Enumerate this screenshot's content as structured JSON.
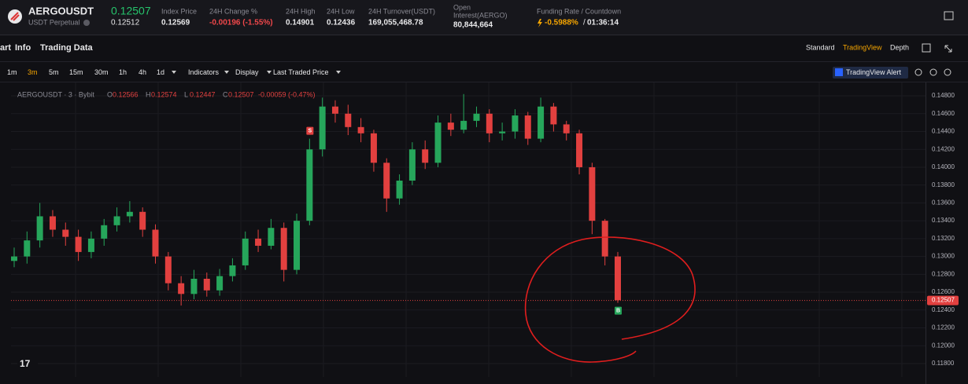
{
  "header": {
    "symbol": "AERGOUSDT",
    "contract": "USDT Perpetual",
    "last_price": "0.12507",
    "mark_price": "0.12512",
    "stats": [
      {
        "label": "Index Price",
        "value": "0.12569"
      },
      {
        "label": "24H Change %",
        "value": "-0.00196 (-1.55%)"
      },
      {
        "label": "24H High",
        "value": "0.14901"
      },
      {
        "label": "24H Low",
        "value": "0.12436"
      },
      {
        "label": "24H Turnover(USDT)",
        "value": "169,055,468.78"
      }
    ],
    "open_interest": {
      "label_lines": [
        "Open",
        "Interest(AERGO)"
      ],
      "value": "80,844,664"
    },
    "funding": {
      "label": "Funding Rate / Countdown",
      "rate": "-0.5988%",
      "separator": "/",
      "countdown": "01:36:14"
    }
  },
  "tabs": {
    "left": [
      "art",
      "Info",
      "Trading Data"
    ],
    "right": [
      "Standard",
      "TradingView",
      "Depth"
    ],
    "active_right_index": 1
  },
  "toolbar": {
    "intervals": [
      "1m",
      "3m",
      "5m",
      "15m",
      "30m",
      "1h",
      "4h",
      "1d"
    ],
    "active_interval_index": 1,
    "menus": [
      "Indicators",
      "Display",
      "Last Traded Price"
    ],
    "alert": "TradingView Alert"
  },
  "chart_data": {
    "type": "candlestick",
    "legend": {
      "title": "AERGOUSDT · 3 · Bybit",
      "items": [
        {
          "key": "O",
          "value": "0.12566"
        },
        {
          "key": "H",
          "value": "0.12574"
        },
        {
          "key": "L",
          "value": "0.12447"
        },
        {
          "key": "C",
          "value": "0.12507"
        }
      ],
      "change": "-0.00059 (-0.47%)"
    },
    "up_color": "#26a65b",
    "down_color": "#e2403f",
    "grid": true,
    "ylim": [
      0.1165,
      0.1495
    ],
    "yticks": [
      {
        "value": 0.148,
        "label": "0.14800"
      },
      {
        "value": 0.146,
        "label": "0.14600"
      },
      {
        "value": 0.144,
        "label": "0.14400"
      },
      {
        "value": 0.142,
        "label": "0.14200"
      },
      {
        "value": 0.14,
        "label": "0.14000"
      },
      {
        "value": 0.138,
        "label": "0.13800"
      },
      {
        "value": 0.136,
        "label": "0.13600"
      },
      {
        "value": 0.134,
        "label": "0.13400"
      },
      {
        "value": 0.132,
        "label": "0.13200"
      },
      {
        "value": 0.13,
        "label": "0.13000"
      },
      {
        "value": 0.128,
        "label": "0.12800"
      },
      {
        "value": 0.126,
        "label": "0.12600"
      },
      {
        "value": 0.124,
        "label": "0.12400"
      },
      {
        "value": 0.122,
        "label": "0.12200"
      },
      {
        "value": 0.12,
        "label": "0.12000"
      },
      {
        "value": 0.118,
        "label": "0.11800"
      }
    ],
    "last_price": 0.12507,
    "candles": [
      [
        0.1295,
        0.131,
        0.1288,
        0.13
      ],
      [
        0.13,
        0.1328,
        0.1292,
        0.1318
      ],
      [
        0.1318,
        0.136,
        0.131,
        0.1345
      ],
      [
        0.1345,
        0.1352,
        0.1322,
        0.133
      ],
      [
        0.133,
        0.1338,
        0.1312,
        0.1322
      ],
      [
        0.1322,
        0.133,
        0.1295,
        0.1305
      ],
      [
        0.1305,
        0.1328,
        0.1298,
        0.132
      ],
      [
        0.132,
        0.1342,
        0.1312,
        0.1335
      ],
      [
        0.1335,
        0.1355,
        0.1328,
        0.1345
      ],
      [
        0.1345,
        0.1362,
        0.1338,
        0.135
      ],
      [
        0.135,
        0.1355,
        0.1322,
        0.133
      ],
      [
        0.133,
        0.1336,
        0.1292,
        0.13
      ],
      [
        0.13,
        0.1305,
        0.1262,
        0.127
      ],
      [
        0.127,
        0.1278,
        0.1245,
        0.1258
      ],
      [
        0.1258,
        0.1285,
        0.1252,
        0.1275
      ],
      [
        0.1275,
        0.1282,
        0.1255,
        0.1262
      ],
      [
        0.1262,
        0.1286,
        0.1256,
        0.1278
      ],
      [
        0.1278,
        0.1298,
        0.1272,
        0.129
      ],
      [
        0.129,
        0.1328,
        0.1285,
        0.132
      ],
      [
        0.132,
        0.133,
        0.1305,
        0.1312
      ],
      [
        0.1312,
        0.1342,
        0.1308,
        0.1332
      ],
      [
        0.1332,
        0.1338,
        0.1272,
        0.1285
      ],
      [
        0.1285,
        0.1348,
        0.128,
        0.134
      ],
      [
        0.134,
        0.1432,
        0.1335,
        0.142
      ],
      [
        0.142,
        0.1478,
        0.1412,
        0.1468
      ],
      [
        0.1468,
        0.1475,
        0.145,
        0.146
      ],
      [
        0.146,
        0.147,
        0.1436,
        0.1445
      ],
      [
        0.1445,
        0.1455,
        0.1428,
        0.1438
      ],
      [
        0.1438,
        0.1442,
        0.1395,
        0.1405
      ],
      [
        0.1405,
        0.141,
        0.135,
        0.1365
      ],
      [
        0.1365,
        0.1392,
        0.1358,
        0.1385
      ],
      [
        0.1385,
        0.1428,
        0.138,
        0.142
      ],
      [
        0.142,
        0.143,
        0.1398,
        0.1405
      ],
      [
        0.1405,
        0.1458,
        0.14,
        0.145
      ],
      [
        0.145,
        0.146,
        0.1435,
        0.1442
      ],
      [
        0.1442,
        0.1482,
        0.1438,
        0.1452
      ],
      [
        0.1452,
        0.1468,
        0.1445,
        0.146
      ],
      [
        0.146,
        0.1465,
        0.1428,
        0.1438
      ],
      [
        0.1438,
        0.145,
        0.143,
        0.144
      ],
      [
        0.144,
        0.1465,
        0.1432,
        0.1458
      ],
      [
        0.1458,
        0.1462,
        0.1425,
        0.1432
      ],
      [
        0.1432,
        0.1478,
        0.1428,
        0.1468
      ],
      [
        0.1468,
        0.1472,
        0.144,
        0.1448
      ],
      [
        0.1448,
        0.1452,
        0.143,
        0.1438
      ],
      [
        0.1438,
        0.1442,
        0.1392,
        0.14
      ],
      [
        0.14,
        0.1405,
        0.1325,
        0.134
      ],
      [
        0.134,
        0.1342,
        0.129,
        0.13
      ],
      [
        0.13,
        0.1305,
        0.1248,
        0.1251
      ]
    ],
    "markers": [
      {
        "label": "S",
        "candle": 23,
        "side": "above"
      },
      {
        "label": "B",
        "candle": 47,
        "side": "below"
      }
    ]
  }
}
